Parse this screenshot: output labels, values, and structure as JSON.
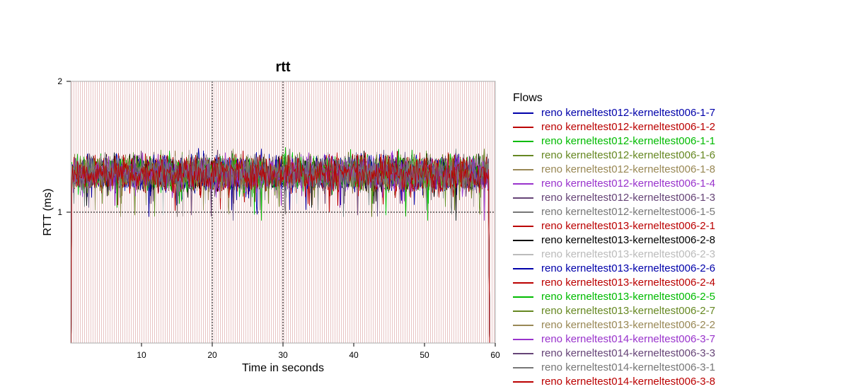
{
  "chart_data": {
    "type": "line",
    "title": "rtt",
    "xlabel": "Time in seconds",
    "ylabel": "RTT (ms)",
    "xlim": [
      0,
      60
    ],
    "ylim": [
      0,
      2
    ],
    "x_ticks": [
      "10",
      "20",
      "30",
      "40",
      "50",
      "60"
    ],
    "y_ticks": [
      "1",
      "2"
    ],
    "grid": {
      "vertical_dashed_at": [
        20,
        30
      ],
      "horizontal_dashed_at": [
        1
      ]
    },
    "legend_title": "Flows",
    "legend_position": "right",
    "note": "",
    "series": [
      {
        "name": "reno kerneltest012-kerneltest006-1-7",
        "color": "#0000aa",
        "start": 0.15,
        "end": 59.1,
        "mean": 1.3
      },
      {
        "name": "reno kerneltest012-kerneltest006-1-2",
        "color": "#bb0000",
        "start": 0.15,
        "end": 59.1,
        "mean": 1.3
      },
      {
        "name": "reno kerneltest012-kerneltest006-1-1",
        "color": "#00bb00",
        "start": 0.15,
        "end": 59.1,
        "mean": 1.3
      },
      {
        "name": "reno kerneltest012-kerneltest006-1-6",
        "color": "#668822",
        "start": 0.15,
        "end": 59.1,
        "mean": 1.3
      },
      {
        "name": "reno kerneltest012-kerneltest006-1-8",
        "color": "#998855",
        "start": 0.15,
        "end": 59.1,
        "mean": 1.3
      },
      {
        "name": "reno kerneltest012-kerneltest006-1-4",
        "color": "#9933cc",
        "start": 0.15,
        "end": 59.1,
        "mean": 1.3
      },
      {
        "name": "reno kerneltest012-kerneltest006-1-3",
        "color": "#664477",
        "start": 0.15,
        "end": 59.1,
        "mean": 1.3
      },
      {
        "name": "reno kerneltest012-kerneltest006-1-5",
        "color": "#777777",
        "start": 0.15,
        "end": 59.1,
        "mean": 1.3
      },
      {
        "name": "reno kerneltest013-kerneltest006-2-1",
        "color": "#bb0000",
        "start": 0.15,
        "end": 59.1,
        "mean": 1.3
      },
      {
        "name": "reno kerneltest013-kerneltest006-2-8",
        "color": "#000000",
        "start": 0.15,
        "end": 59.1,
        "mean": 1.3
      },
      {
        "name": "reno kerneltest013-kerneltest006-2-3",
        "color": "#bbbbbb",
        "start": 0.15,
        "end": 59.1,
        "mean": 1.3
      },
      {
        "name": "reno kerneltest013-kerneltest006-2-6",
        "color": "#0000aa",
        "start": 0.15,
        "end": 59.1,
        "mean": 1.3
      },
      {
        "name": "reno kerneltest013-kerneltest006-2-4",
        "color": "#bb0000",
        "start": 0.15,
        "end": 59.1,
        "mean": 1.3
      },
      {
        "name": "reno kerneltest013-kerneltest006-2-5",
        "color": "#00bb00",
        "start": 0.15,
        "end": 59.1,
        "mean": 1.3
      },
      {
        "name": "reno kerneltest013-kerneltest006-2-7",
        "color": "#668822",
        "start": 0.15,
        "end": 59.1,
        "mean": 1.3
      },
      {
        "name": "reno kerneltest013-kerneltest006-2-2",
        "color": "#998855",
        "start": 0.15,
        "end": 59.1,
        "mean": 1.3
      },
      {
        "name": "reno kerneltest014-kerneltest006-3-7",
        "color": "#9933cc",
        "start": 0.15,
        "end": 59.1,
        "mean": 1.3
      },
      {
        "name": "reno kerneltest014-kerneltest006-3-3",
        "color": "#664477",
        "start": 0.15,
        "end": 59.1,
        "mean": 1.3
      },
      {
        "name": "reno kerneltest014-kerneltest006-3-1",
        "color": "#777777",
        "start": 0.15,
        "end": 59.1,
        "mean": 1.3
      },
      {
        "name": "reno kerneltest014-kerneltest006-3-8",
        "color": "#bb0000",
        "start": 0.15,
        "end": 59.1,
        "mean": 1.3
      }
    ]
  },
  "colors": {
    "background_stripes": "#e8c4c4",
    "frame": "#aaaaaa"
  }
}
